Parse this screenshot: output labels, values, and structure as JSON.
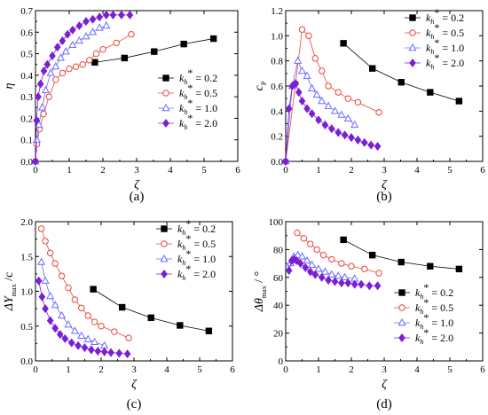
{
  "figure": {
    "colors": {
      "0.2": "#000000",
      "0.5": "#e8473b",
      "1.0": "#6b6bff",
      "2.0": "#7b1fd6"
    },
    "marker_shapes": {
      "0.2": "square",
      "0.5": "circle",
      "1.0": "triangle",
      "2.0": "diamond"
    }
  },
  "chart_data": [
    {
      "type": "line",
      "panel": "(a)",
      "xlabel": "ζ",
      "ylabel": "η",
      "xlim": [
        0,
        6
      ],
      "ylim": [
        0,
        0.7
      ],
      "xticks": [
        "0",
        "1",
        "2",
        "3",
        "4",
        "5",
        "6"
      ],
      "yticks": [
        "0.0",
        "0.1",
        "0.2",
        "0.3",
        "0.4",
        "0.5",
        "0.6",
        "0.7"
      ],
      "legend_position": "center-right",
      "series": [
        {
          "name_prefix": "k",
          "name_sub": "h",
          "name_sup": "*",
          "name_value": " = 0.2",
          "key": "0.2",
          "x": [
            1.76,
            2.64,
            3.52,
            4.4,
            5.28
          ],
          "y": [
            0.46,
            0.48,
            0.51,
            0.545,
            0.57
          ]
        },
        {
          "name_prefix": "k",
          "name_sub": "h",
          "name_sup": "*",
          "name_value": " = 0.5",
          "key": "0.5",
          "x": [
            0.0,
            0.04,
            0.12,
            0.24,
            0.4,
            0.6,
            0.8,
            1.0,
            1.2,
            1.4,
            1.6,
            1.8,
            2.0,
            2.4,
            2.84
          ],
          "y": [
            0.0,
            0.08,
            0.15,
            0.22,
            0.3,
            0.38,
            0.41,
            0.43,
            0.44,
            0.45,
            0.47,
            0.5,
            0.52,
            0.55,
            0.59
          ]
        },
        {
          "name_prefix": "k",
          "name_sub": "h",
          "name_sup": "*",
          "name_value": " = 1.0",
          "key": "1.0",
          "x": [
            0.0,
            0.04,
            0.1,
            0.2,
            0.3,
            0.45,
            0.6,
            0.75,
            0.9,
            1.1,
            1.3,
            1.5,
            1.7,
            1.9,
            2.1
          ],
          "y": [
            0.0,
            0.1,
            0.17,
            0.25,
            0.33,
            0.41,
            0.44,
            0.48,
            0.51,
            0.54,
            0.56,
            0.58,
            0.6,
            0.62,
            0.63
          ]
        },
        {
          "name_prefix": "k",
          "name_sub": "h",
          "name_sup": "*",
          "name_value": " = 2.0",
          "key": "2.0",
          "x": [
            0.0,
            0.03,
            0.08,
            0.15,
            0.25,
            0.35,
            0.5,
            0.65,
            0.8,
            0.95,
            1.1,
            1.3,
            1.5,
            1.7,
            1.9,
            2.1,
            2.3,
            2.55,
            2.8
          ],
          "y": [
            0.0,
            0.19,
            0.3,
            0.36,
            0.42,
            0.45,
            0.49,
            0.53,
            0.56,
            0.59,
            0.61,
            0.63,
            0.65,
            0.66,
            0.67,
            0.68,
            0.68,
            0.68,
            0.68
          ]
        }
      ]
    },
    {
      "type": "line",
      "panel": "(b)",
      "xlabel": "ζ",
      "ylabel": "c",
      "ylabel_sub": "P",
      "xlim": [
        0,
        6
      ],
      "ylim": [
        0,
        1.2
      ],
      "xticks": [
        "0",
        "1",
        "2",
        "3",
        "4",
        "5",
        "6"
      ],
      "yticks": [
        "0.0",
        "0.2",
        "0.4",
        "0.6",
        "0.8",
        "1.0",
        "1.2"
      ],
      "legend_position": "top-right",
      "series": [
        {
          "name_prefix": "k",
          "name_sub": "h",
          "name_sup": "*",
          "name_value": " = 0.2",
          "key": "0.2",
          "x": [
            1.76,
            2.64,
            3.52,
            4.4,
            5.28
          ],
          "y": [
            0.94,
            0.74,
            0.63,
            0.55,
            0.48
          ]
        },
        {
          "name_prefix": "k",
          "name_sub": "h",
          "name_sup": "*",
          "name_value": " = 0.5",
          "key": "0.5",
          "x": [
            0.0,
            0.3,
            0.5,
            0.7,
            0.9,
            1.1,
            1.3,
            1.6,
            1.9,
            2.2,
            2.84
          ],
          "y": [
            0.0,
            0.62,
            1.05,
            1.0,
            0.82,
            0.72,
            0.6,
            0.55,
            0.5,
            0.47,
            0.39
          ]
        },
        {
          "name_prefix": "k",
          "name_sub": "h",
          "name_sup": "*",
          "name_value": " = 1.0",
          "key": "1.0",
          "x": [
            0.0,
            0.2,
            0.37,
            0.5,
            0.65,
            0.8,
            0.95,
            1.1,
            1.3,
            1.5,
            1.7,
            1.9,
            2.1
          ],
          "y": [
            0.0,
            0.6,
            0.8,
            0.72,
            0.68,
            0.58,
            0.53,
            0.48,
            0.44,
            0.4,
            0.37,
            0.34,
            0.29
          ]
        },
        {
          "name_prefix": "k",
          "name_sub": "h",
          "name_sup": "*",
          "name_value": " = 2.0",
          "key": "2.0",
          "x": [
            0.0,
            0.1,
            0.2,
            0.3,
            0.4,
            0.5,
            0.65,
            0.8,
            1.0,
            1.2,
            1.4,
            1.6,
            1.8,
            2.0,
            2.2,
            2.4,
            2.6,
            2.8
          ],
          "y": [
            0.0,
            0.42,
            0.6,
            0.62,
            0.55,
            0.48,
            0.42,
            0.38,
            0.33,
            0.29,
            0.26,
            0.23,
            0.21,
            0.19,
            0.17,
            0.15,
            0.13,
            0.12
          ]
        }
      ]
    },
    {
      "type": "line",
      "panel": "(c)",
      "xlabel": "ζ",
      "ylabel": "ΔY",
      "ylabel_sub": "max",
      "ylabel_tail": " /c",
      "xlim": [
        0,
        6
      ],
      "ylim": [
        0,
        2.0
      ],
      "xticks": [
        "0",
        "1",
        "2",
        "3",
        "4",
        "5",
        "6"
      ],
      "yticks": [
        "0.0",
        "0.5",
        "1.0",
        "1.5",
        "2.0"
      ],
      "legend_position": "top-right",
      "series": [
        {
          "name_prefix": "k",
          "name_sub": "h",
          "name_sup": "*",
          "name_value": " = 0.2",
          "key": "0.2",
          "x": [
            1.76,
            2.64,
            3.52,
            4.4,
            5.28
          ],
          "y": [
            1.03,
            0.77,
            0.62,
            0.51,
            0.43
          ]
        },
        {
          "name_prefix": "k",
          "name_sub": "h",
          "name_sup": "*",
          "name_value": " = 0.5",
          "key": "0.5",
          "x": [
            0.18,
            0.3,
            0.45,
            0.6,
            0.8,
            1.0,
            1.2,
            1.4,
            1.6,
            1.8,
            2.0,
            2.4,
            2.84
          ],
          "y": [
            1.9,
            1.72,
            1.55,
            1.4,
            1.22,
            1.05,
            0.88,
            0.76,
            0.65,
            0.56,
            0.5,
            0.42,
            0.33
          ]
        },
        {
          "name_prefix": "k",
          "name_sub": "h",
          "name_sup": "*",
          "name_value": " = 1.0",
          "key": "1.0",
          "x": [
            0.18,
            0.3,
            0.45,
            0.6,
            0.8,
            1.0,
            1.2,
            1.4,
            1.6,
            1.8,
            2.1
          ],
          "y": [
            1.42,
            1.15,
            0.93,
            0.8,
            0.65,
            0.52,
            0.43,
            0.36,
            0.31,
            0.27,
            0.22
          ]
        },
        {
          "name_prefix": "k",
          "name_sub": "h",
          "name_sup": "*",
          "name_value": " = 2.0",
          "key": "2.0",
          "x": [
            0.1,
            0.2,
            0.3,
            0.45,
            0.6,
            0.75,
            0.9,
            1.1,
            1.3,
            1.5,
            1.7,
            1.9,
            2.1,
            2.3,
            2.55,
            2.8
          ],
          "y": [
            1.15,
            0.92,
            0.75,
            0.58,
            0.47,
            0.38,
            0.32,
            0.26,
            0.22,
            0.19,
            0.16,
            0.14,
            0.13,
            0.12,
            0.11,
            0.1
          ]
        }
      ]
    },
    {
      "type": "line",
      "panel": "(d)",
      "xlabel": "ζ",
      "ylabel": "Δθ",
      "ylabel_sub": "max",
      "ylabel_tail": " / °",
      "xlim": [
        0,
        6
      ],
      "ylim": [
        0,
        100
      ],
      "xticks": [
        "0",
        "1",
        "2",
        "3",
        "4",
        "5",
        "6"
      ],
      "yticks": [
        "0",
        "20",
        "40",
        "60",
        "80",
        "100"
      ],
      "legend_position": "bottom-right",
      "series": [
        {
          "name_prefix": "k",
          "name_sub": "h",
          "name_sup": "*",
          "name_value": " = 0.2",
          "key": "0.2",
          "x": [
            1.76,
            2.64,
            3.52,
            4.4,
            5.28
          ],
          "y": [
            87,
            76,
            71,
            68,
            66
          ]
        },
        {
          "name_prefix": "k",
          "name_sub": "h",
          "name_sup": "*",
          "name_value": " = 0.5",
          "key": "0.5",
          "x": [
            0.35,
            0.55,
            0.75,
            0.95,
            1.15,
            1.4,
            1.7,
            2.0,
            2.4,
            2.84
          ],
          "y": [
            92,
            88,
            84,
            80,
            76,
            73,
            70,
            68,
            66,
            63
          ]
        },
        {
          "name_prefix": "k",
          "name_sub": "h",
          "name_sup": "*",
          "name_value": " = 1.0",
          "key": "1.0",
          "x": [
            0.15,
            0.25,
            0.37,
            0.5,
            0.65,
            0.8,
            1.0,
            1.2,
            1.4,
            1.6,
            1.8,
            2.1
          ],
          "y": [
            70,
            75,
            76,
            75,
            72,
            69,
            66,
            64,
            62,
            61,
            60,
            59
          ]
        },
        {
          "name_prefix": "k",
          "name_sub": "h",
          "name_sup": "*",
          "name_value": " = 2.0",
          "key": "2.0",
          "x": [
            0.1,
            0.18,
            0.25,
            0.33,
            0.45,
            0.6,
            0.75,
            0.9,
            1.1,
            1.3,
            1.5,
            1.7,
            1.9,
            2.1,
            2.3,
            2.55,
            2.8
          ],
          "y": [
            65,
            72,
            73,
            72,
            70,
            67,
            64,
            62,
            60,
            58,
            57,
            56,
            56,
            55,
            55,
            54,
            54
          ]
        }
      ]
    }
  ]
}
